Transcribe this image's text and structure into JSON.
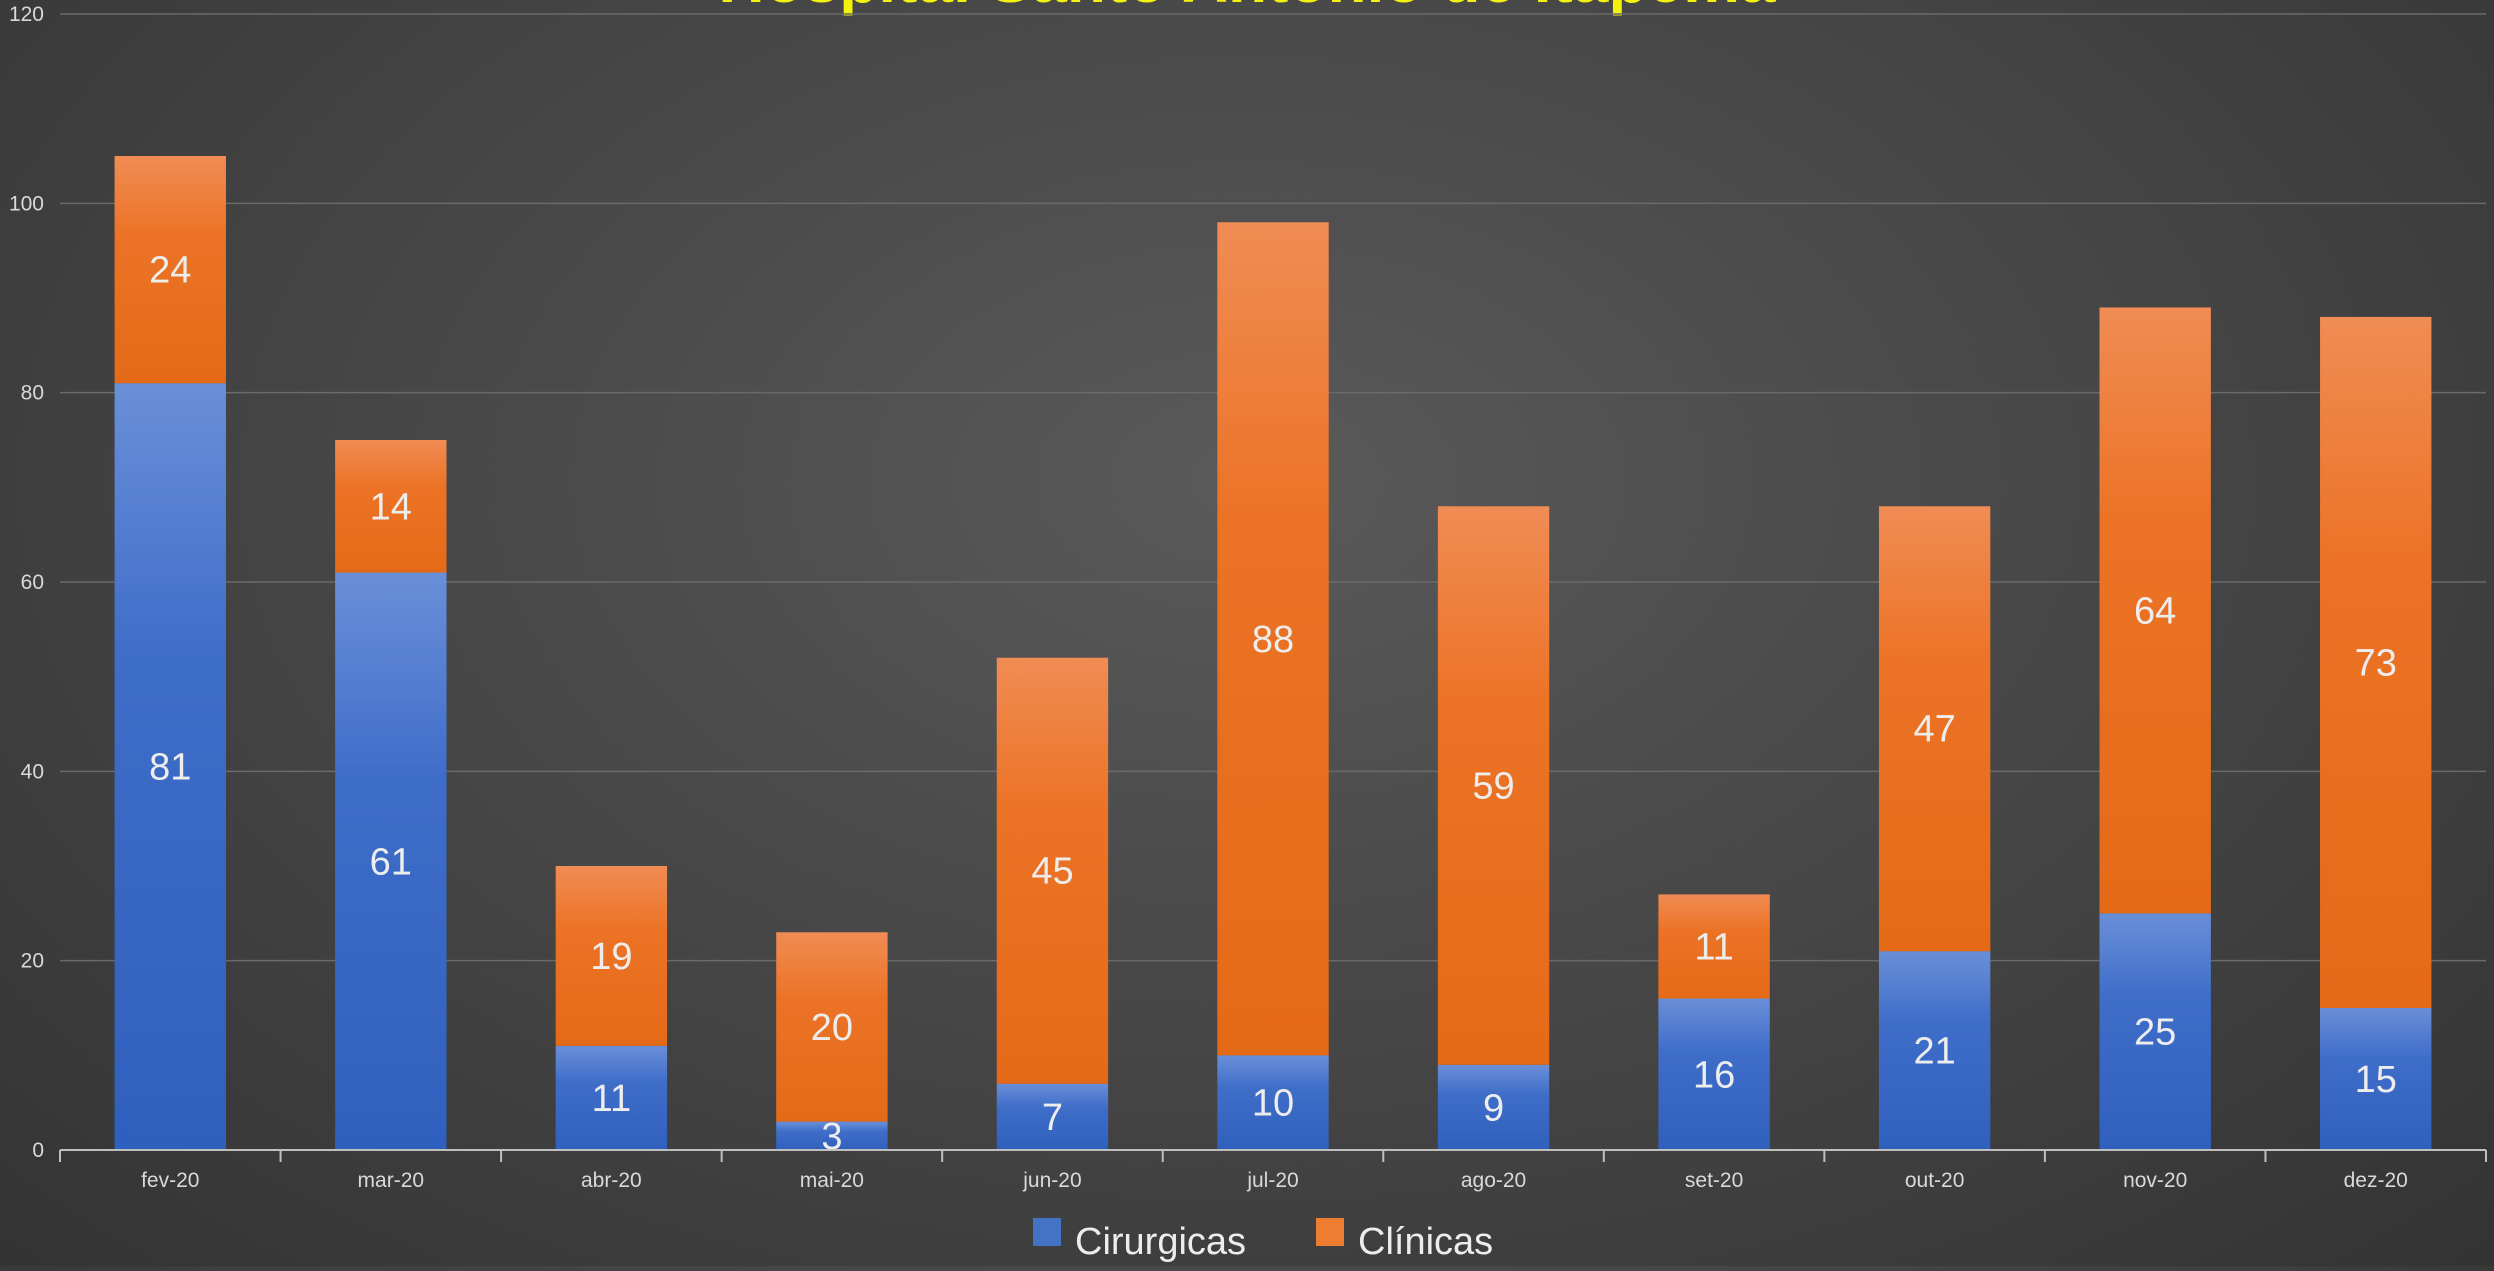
{
  "chart_data": {
    "type": "bar",
    "stacked": true,
    "title": "Hospital Santo Antônio de Itapema",
    "xlabel": "",
    "ylabel": "",
    "ylim": [
      0,
      120
    ],
    "yticks": [
      0,
      20,
      40,
      60,
      80,
      100,
      120
    ],
    "grid": true,
    "legend_position": "bottom",
    "categories": [
      "fev-20",
      "mar-20",
      "abr-20",
      "mai-20",
      "jun-20",
      "jul-20",
      "ago-20",
      "set-20",
      "out-20",
      "nov-20",
      "dez-20"
    ],
    "series": [
      {
        "name": "Cirurgicas",
        "color": "#4472c4",
        "values": [
          81,
          61,
          11,
          3,
          7,
          10,
          9,
          16,
          21,
          25,
          15
        ]
      },
      {
        "name": "Clínicas",
        "color": "#ed7d31",
        "values": [
          24,
          14,
          19,
          20,
          45,
          88,
          59,
          11,
          47,
          64,
          73
        ]
      }
    ]
  },
  "colors": {
    "background": "#4a4a4a",
    "title": "#f2f20a",
    "gridline": "#6a6a6a",
    "text": "#d9d9d9"
  }
}
